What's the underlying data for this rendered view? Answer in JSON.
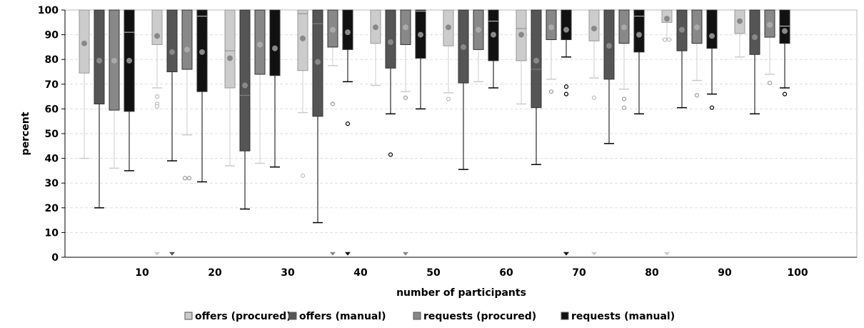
{
  "chart_data": {
    "type": "box",
    "title": "",
    "xlabel": "number of participants",
    "ylabel": "percent",
    "ylim": [
      0,
      100
    ],
    "yticks": [
      0,
      10,
      20,
      30,
      40,
      50,
      60,
      70,
      80,
      90,
      100
    ],
    "grid": "horizontal dashed",
    "legend_position": "bottom",
    "categories": [
      "10",
      "20",
      "30",
      "40",
      "50",
      "60",
      "70",
      "80",
      "90",
      "100"
    ],
    "colors": {
      "offers (procured)": "#cccccc",
      "offers (manual)": "#555555",
      "requests (procured)": "#888888",
      "requests (manual)": "#111111",
      "whisker_light": "#cccccc",
      "whisker_dark": "#000000",
      "grid": "#dddddd",
      "axis": "#000000"
    },
    "series": [
      {
        "name": "offers (procured)",
        "boxes": [
          {
            "whisker_low": 40,
            "q1": 74.5,
            "median": null,
            "q3": 100,
            "whisker_high": 100,
            "mean": 86.5,
            "outliers": [],
            "extremes": []
          },
          {
            "whisker_low": 68.5,
            "q1": 86,
            "median": null,
            "q3": 100,
            "whisker_high": 100,
            "mean": 89.5,
            "outliers": [
              65,
              62,
              61
            ],
            "extremes": [
              1.5
            ]
          },
          {
            "whisker_low": 37,
            "q1": 68.5,
            "median": 83.5,
            "q3": 100,
            "whisker_high": 100,
            "mean": 80.5,
            "outliers": [],
            "extremes": []
          },
          {
            "whisker_low": 58.5,
            "q1": 75.5,
            "median": 98.5,
            "q3": 100,
            "whisker_high": 100,
            "mean": 88.5,
            "outliers": [
              33
            ],
            "extremes": []
          },
          {
            "whisker_low": 69.5,
            "q1": 86.5,
            "median": null,
            "q3": 100,
            "whisker_high": 100,
            "mean": 93,
            "outliers": [],
            "extremes": []
          },
          {
            "whisker_low": 66.5,
            "q1": 85.5,
            "median": null,
            "q3": 100,
            "whisker_high": 100,
            "mean": 93,
            "outliers": [
              64
            ],
            "extremes": []
          },
          {
            "whisker_low": 62,
            "q1": 79.5,
            "median": 92.5,
            "q3": 100,
            "whisker_high": 100,
            "mean": 90,
            "outliers": [],
            "extremes": []
          },
          {
            "whisker_low": 72.5,
            "q1": 87.5,
            "median": null,
            "q3": 100,
            "whisker_high": 100,
            "mean": 92.5,
            "outliers": [
              64.5
            ],
            "extremes": [
              1.5
            ]
          },
          {
            "whisker_low": 88,
            "q1": 95,
            "median": null,
            "q3": 100,
            "whisker_high": 100,
            "mean": 96.5,
            "outliers": [
              88,
              88
            ],
            "extremes": [
              1.5
            ]
          },
          {
            "whisker_low": 81,
            "q1": 90.5,
            "median": null,
            "q3": 100,
            "whisker_high": 100,
            "mean": 95.5,
            "outliers": [],
            "extremes": []
          }
        ]
      },
      {
        "name": "offers (manual)",
        "boxes": [
          {
            "whisker_low": 20,
            "q1": 62,
            "median": null,
            "q3": 100,
            "whisker_high": 100,
            "mean": 79.5,
            "outliers": [],
            "extremes": []
          },
          {
            "whisker_low": 39,
            "q1": 75,
            "median": null,
            "q3": 100,
            "whisker_high": 100,
            "mean": 83,
            "outliers": [],
            "extremes": [
              1.5
            ]
          },
          {
            "whisker_low": 19.5,
            "q1": 43,
            "median": 65.5,
            "q3": 100,
            "whisker_high": 100,
            "mean": 69.5,
            "outliers": [],
            "extremes": []
          },
          {
            "whisker_low": 14,
            "q1": 57,
            "median": 94.5,
            "q3": 100,
            "whisker_high": 100,
            "mean": 79,
            "outliers": [],
            "extremes": []
          },
          {
            "whisker_low": 58,
            "q1": 76.5,
            "median": null,
            "q3": 100,
            "whisker_high": 100,
            "mean": 87,
            "outliers": [
              41.5
            ],
            "extremes": []
          },
          {
            "whisker_low": 35.5,
            "q1": 70.5,
            "median": null,
            "q3": 100,
            "whisker_high": 100,
            "mean": 85,
            "outliers": [],
            "extremes": []
          },
          {
            "whisker_low": 37.5,
            "q1": 60.5,
            "median": 76,
            "q3": 100,
            "whisker_high": 100,
            "mean": 79.5,
            "outliers": [],
            "extremes": []
          },
          {
            "whisker_low": 46,
            "q1": 72,
            "median": null,
            "q3": 100,
            "whisker_high": 100,
            "mean": 85.5,
            "outliers": [],
            "extremes": []
          },
          {
            "whisker_low": 60.5,
            "q1": 83.5,
            "median": null,
            "q3": 100,
            "whisker_high": 100,
            "mean": 92,
            "outliers": [],
            "extremes": []
          },
          {
            "whisker_low": 58,
            "q1": 82,
            "median": null,
            "q3": 100,
            "whisker_high": 100,
            "mean": 89,
            "outliers": [],
            "extremes": []
          }
        ]
      },
      {
        "name": "requests (procured)",
        "boxes": [
          {
            "whisker_low": 36,
            "q1": 59.5,
            "median": null,
            "q3": 100,
            "whisker_high": 100,
            "mean": 79.5,
            "outliers": [],
            "extremes": []
          },
          {
            "whisker_low": 49.5,
            "q1": 76,
            "median": null,
            "q3": 100,
            "whisker_high": 100,
            "mean": 84,
            "outliers": [
              32,
              32
            ],
            "extremes": []
          },
          {
            "whisker_low": 38,
            "q1": 74,
            "median": null,
            "q3": 100,
            "whisker_high": 100,
            "mean": 86,
            "outliers": [],
            "extremes": []
          },
          {
            "whisker_low": 77.5,
            "q1": 85,
            "median": null,
            "q3": 100,
            "whisker_high": 100,
            "mean": 92,
            "outliers": [
              62
            ],
            "extremes": [
              1.5
            ]
          },
          {
            "whisker_low": 67,
            "q1": 86,
            "median": null,
            "q3": 100,
            "whisker_high": 100,
            "mean": 93,
            "outliers": [
              64.5
            ],
            "extremes": [
              1.5
            ]
          },
          {
            "whisker_low": 71,
            "q1": 84,
            "median": null,
            "q3": 100,
            "whisker_high": 100,
            "mean": 92,
            "outliers": [],
            "extremes": []
          },
          {
            "whisker_low": 72,
            "q1": 88,
            "median": null,
            "q3": 100,
            "whisker_high": 100,
            "mean": 93,
            "outliers": [
              67
            ],
            "extremes": []
          },
          {
            "whisker_low": 68,
            "q1": 86.5,
            "median": null,
            "q3": 100,
            "whisker_high": 100,
            "mean": 93,
            "outliers": [
              64,
              60.5
            ],
            "extremes": []
          },
          {
            "whisker_low": 71.5,
            "q1": 86.5,
            "median": null,
            "q3": 100,
            "whisker_high": 100,
            "mean": 93,
            "outliers": [
              65.5
            ],
            "extremes": []
          },
          {
            "whisker_low": 74,
            "q1": 89,
            "median": null,
            "q3": 100,
            "whisker_high": 100,
            "mean": 94,
            "outliers": [
              70.5
            ],
            "extremes": []
          }
        ]
      },
      {
        "name": "requests (manual)",
        "boxes": [
          {
            "whisker_low": 35,
            "q1": 59,
            "median": 91,
            "q3": 100,
            "whisker_high": 100,
            "mean": 79.5,
            "outliers": [],
            "extremes": []
          },
          {
            "whisker_low": 30.5,
            "q1": 67,
            "median": 97.5,
            "q3": 100,
            "whisker_high": 100,
            "mean": 83,
            "outliers": [],
            "extremes": []
          },
          {
            "whisker_low": 36.5,
            "q1": 73.5,
            "median": null,
            "q3": 100,
            "whisker_high": 100,
            "mean": 84.5,
            "outliers": [],
            "extremes": []
          },
          {
            "whisker_low": 71,
            "q1": 84,
            "median": null,
            "q3": 100,
            "whisker_high": 100,
            "mean": 91,
            "outliers": [
              54
            ],
            "extremes": [
              1.5
            ]
          },
          {
            "whisker_low": 60,
            "q1": 80.5,
            "median": 99.5,
            "q3": 100,
            "whisker_high": 100,
            "mean": 90,
            "outliers": [],
            "extremes": []
          },
          {
            "whisker_low": 68.5,
            "q1": 79.5,
            "median": 95.5,
            "q3": 100,
            "whisker_high": 100,
            "mean": 90,
            "outliers": [],
            "extremes": []
          },
          {
            "whisker_low": 81,
            "q1": 88,
            "median": null,
            "q3": 100,
            "whisker_high": 100,
            "mean": 92,
            "outliers": [
              69,
              66
            ],
            "extremes": [
              1.5
            ]
          },
          {
            "whisker_low": 58,
            "q1": 83,
            "median": 97.5,
            "q3": 100,
            "whisker_high": 100,
            "mean": 90,
            "outliers": [],
            "extremes": []
          },
          {
            "whisker_low": 66,
            "q1": 84.5,
            "median": null,
            "q3": 100,
            "whisker_high": 100,
            "mean": 89.5,
            "outliers": [
              60.5
            ],
            "extremes": []
          },
          {
            "whisker_low": 68.5,
            "q1": 86.5,
            "median": 93.5,
            "q3": 100,
            "whisker_high": 100,
            "mean": 91.5,
            "outliers": [
              66
            ],
            "extremes": []
          }
        ]
      }
    ]
  }
}
